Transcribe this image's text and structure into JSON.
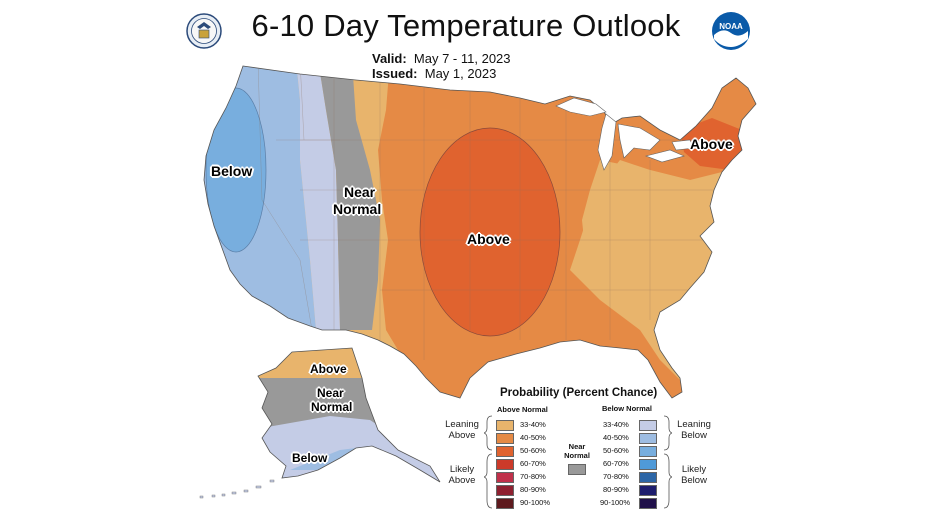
{
  "header": {
    "title": "6-10 Day Temperature Outlook",
    "valid_label": "Valid:",
    "valid_value": "May 7 - 11, 2023",
    "issued_label": "Issued:",
    "issued_value": "May 1, 2023",
    "left_logo_icon": "department-of-commerce-seal-icon",
    "right_logo_icon": "noaa-logo-icon",
    "right_logo_text": "NOAA"
  },
  "map": {
    "labels": {
      "below_west": "Below",
      "near_normal_west_1": "Near",
      "near_normal_west_2": "Normal",
      "above_central": "Above",
      "above_northeast": "Above",
      "alaska_above": "Above",
      "alaska_near_1": "Near",
      "alaska_near_2": "Normal",
      "alaska_below": "Below"
    }
  },
  "legend": {
    "title": "Probability (Percent Chance)",
    "above_header": "Above Normal",
    "below_header": "Below Normal",
    "near_header_1": "Near",
    "near_header_2": "Normal",
    "leaning_above_1": "Leaning",
    "leaning_above_2": "Above",
    "likely_above_1": "Likely",
    "likely_above_2": "Above",
    "leaning_below_1": "Leaning",
    "leaning_below_2": "Below",
    "likely_below_1": "Likely",
    "likely_below_2": "Below",
    "above": [
      {
        "range": "33-40%",
        "color": "#e8b46c"
      },
      {
        "range": "40-50%",
        "color": "#e58a45"
      },
      {
        "range": "50-60%",
        "color": "#e0632f"
      },
      {
        "range": "60-70%",
        "color": "#cc3a2a"
      },
      {
        "range": "70-80%",
        "color": "#c0304a"
      },
      {
        "range": "80-90%",
        "color": "#8e2030"
      },
      {
        "range": "90-100%",
        "color": "#5e1a1e"
      }
    ],
    "near_color": "#999999",
    "below": [
      {
        "range": "33-40%",
        "color": "#c4cce6"
      },
      {
        "range": "40-50%",
        "color": "#9ebde2"
      },
      {
        "range": "50-60%",
        "color": "#78aede"
      },
      {
        "range": "60-70%",
        "color": "#4f9ad8"
      },
      {
        "range": "70-80%",
        "color": "#2d66a6"
      },
      {
        "range": "80-90%",
        "color": "#1e1e6e"
      },
      {
        "range": "90-100%",
        "color": "#20104a"
      }
    ]
  }
}
